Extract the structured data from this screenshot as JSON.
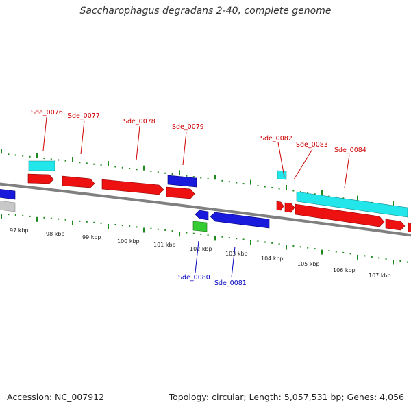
{
  "title": "Saccharophagus degradans 2-40, complete genome",
  "footer": {
    "accession": "Accession: NC_007912",
    "summary": "Topology: circular; Length: 5,057,531 bp; Genes: 4,056"
  },
  "colors": {
    "cds": "#ee1111",
    "rna_cyan": "#22e6ea",
    "reverse_cds": "#1a1add",
    "green_gene": "#33cc33",
    "grey_gene": "#c8c8c8",
    "backbone": "#808080",
    "tick": "#1f8a1f",
    "label_forward": "#cc0000",
    "label_reverse": "#0000bb"
  },
  "scale": {
    "kbp_labels": [
      "97 kbp",
      "98 kbp",
      "99 kbp",
      "100 kbp",
      "101 kbp",
      "102 kbp",
      "103 kbp",
      "104 kbp",
      "105 kbp",
      "106 kbp",
      "107 kbp"
    ]
  },
  "genes": {
    "forward_labels": [
      "Sde_0076",
      "Sde_0077",
      "Sde_0078",
      "Sde_0079",
      "Sde_0082",
      "Sde_0083",
      "Sde_0084"
    ],
    "reverse_labels": [
      "Sde_0080",
      "Sde_0081"
    ]
  }
}
